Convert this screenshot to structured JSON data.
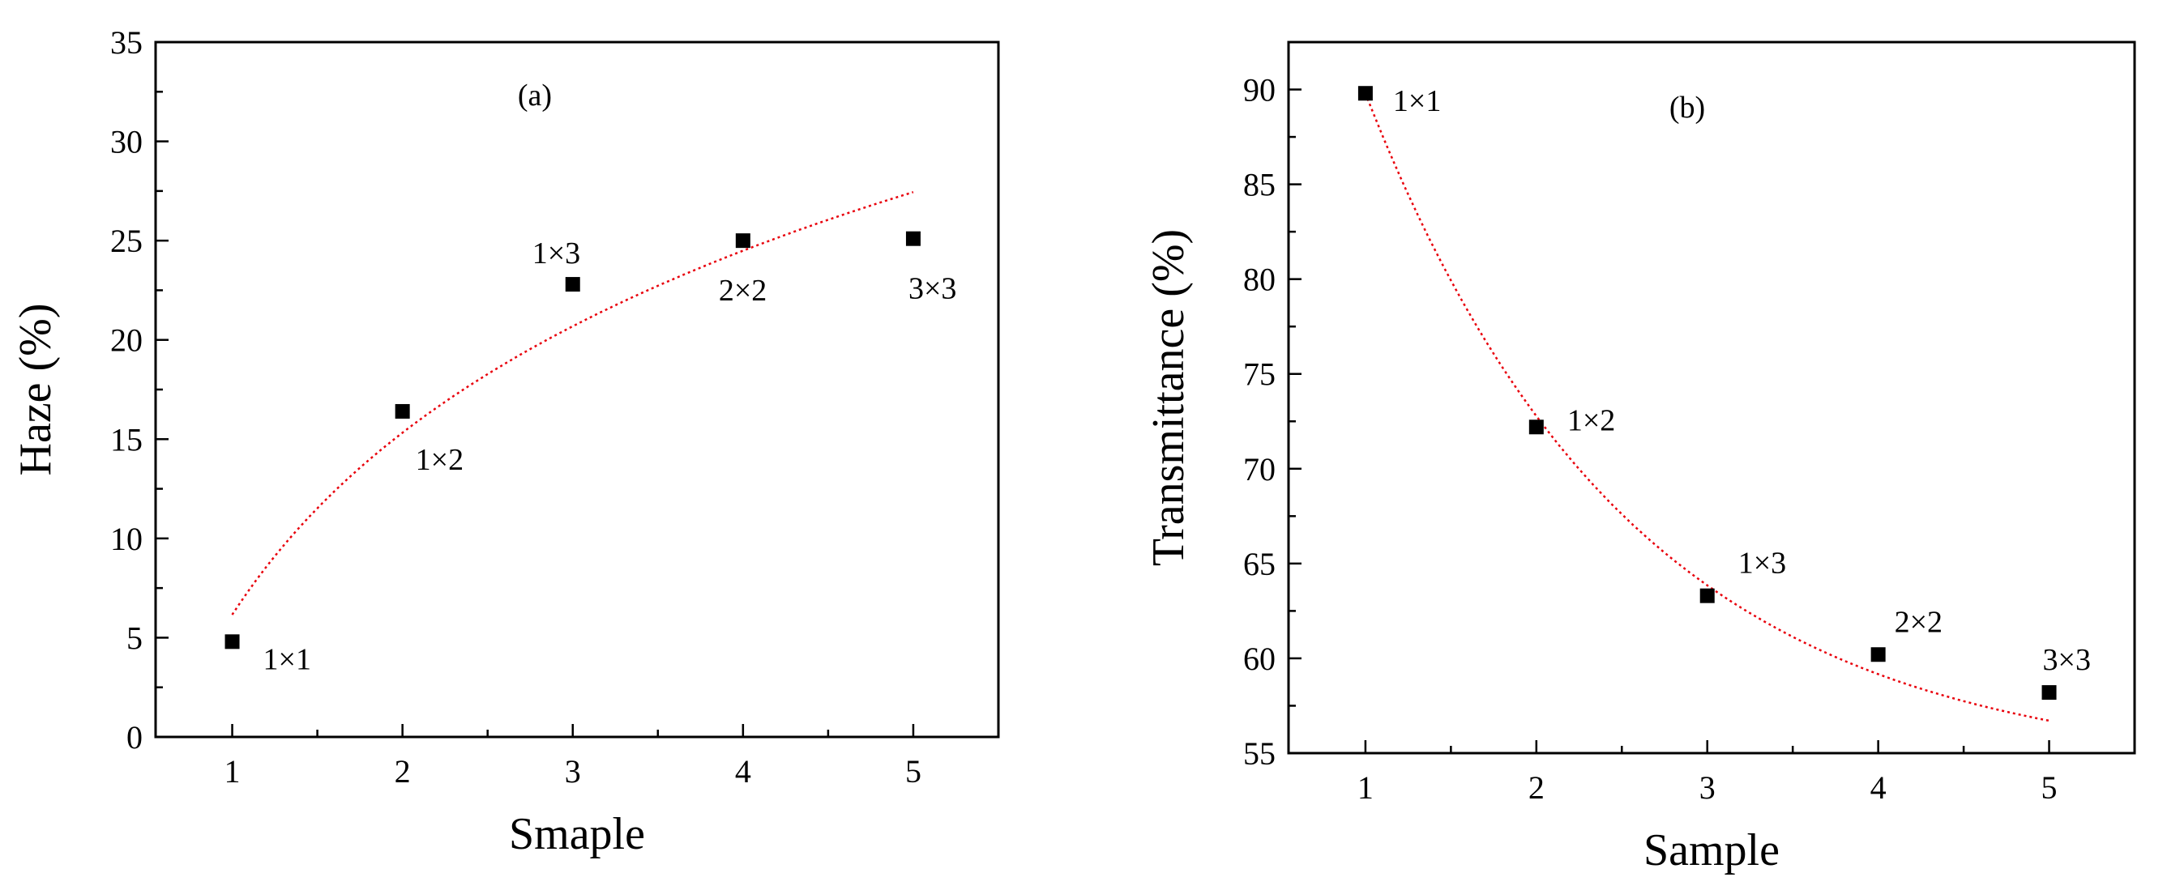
{
  "chart_data": [
    {
      "type": "scatter",
      "panel_label": "(a)",
      "xlabel": "Smaple",
      "ylabel": "Haze (%)",
      "xlim": [
        0.55,
        5.5
      ],
      "ylim": [
        0,
        35
      ],
      "xticks": [
        1,
        2,
        3,
        4,
        5
      ],
      "yticks": [
        0,
        5,
        10,
        15,
        20,
        25,
        30,
        35
      ],
      "points": [
        {
          "x": 1,
          "y": 4.8,
          "label": "1×1"
        },
        {
          "x": 2,
          "y": 16.4,
          "label": "1×2"
        },
        {
          "x": 3,
          "y": 22.8,
          "label": "1×3"
        },
        {
          "x": 4,
          "y": 25.0,
          "label": "2×2"
        },
        {
          "x": 5,
          "y": 25.1,
          "label": "3×3"
        }
      ],
      "fit": {
        "color": "#e8000b",
        "style": "dotted",
        "model": "logarithmic"
      },
      "marker_color": "#000000"
    },
    {
      "type": "scatter",
      "panel_label": "(b)",
      "xlabel": "Sample",
      "ylabel": "Transmittance (%)",
      "xlim": [
        0.55,
        5.5
      ],
      "ylim": [
        55,
        92.5
      ],
      "xticks": [
        1,
        2,
        3,
        4,
        5
      ],
      "yticks": [
        55,
        60,
        65,
        70,
        75,
        80,
        85,
        90
      ],
      "points": [
        {
          "x": 1,
          "y": 89.8,
          "label": "1×1"
        },
        {
          "x": 2,
          "y": 72.2,
          "label": "1×2"
        },
        {
          "x": 3,
          "y": 63.3,
          "label": "1×3"
        },
        {
          "x": 4,
          "y": 60.2,
          "label": "2×2"
        },
        {
          "x": 5,
          "y": 58.2,
          "label": "3×3"
        }
      ],
      "fit": {
        "color": "#e8000b",
        "style": "dotted",
        "model": "exponential-decay"
      },
      "marker_color": "#000000"
    }
  ]
}
